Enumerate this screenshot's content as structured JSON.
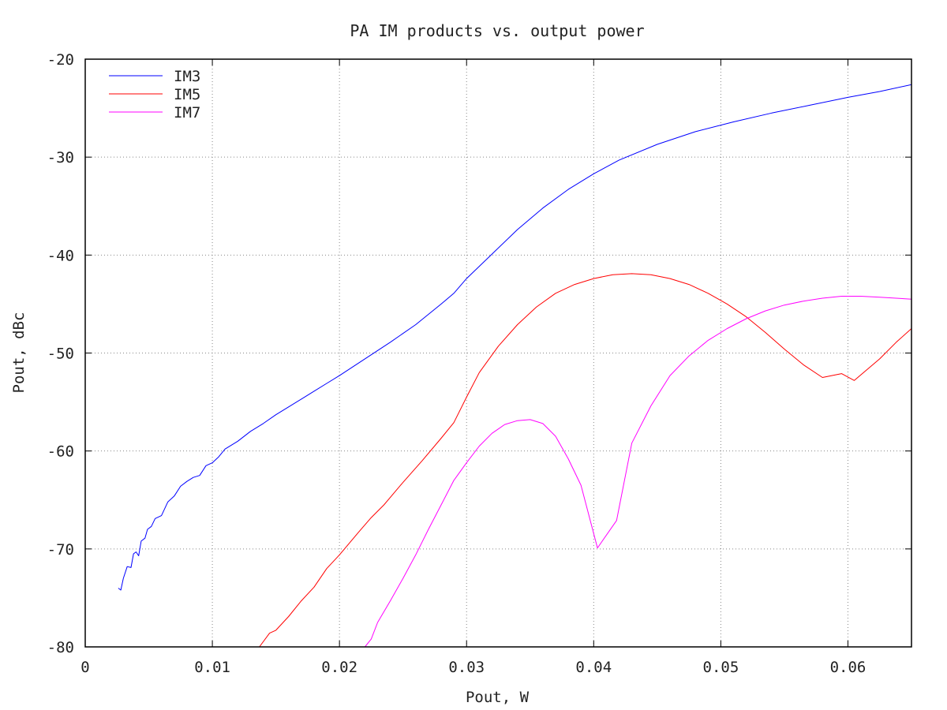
{
  "chart_data": {
    "type": "line",
    "title": "PA IM products vs. output power",
    "xlabel": "Pout, W",
    "ylabel": "Pout, dBc",
    "xlim": [
      0,
      0.065
    ],
    "ylim": [
      -80,
      -20
    ],
    "x_ticks": [
      0,
      0.01,
      0.02,
      0.03,
      0.04,
      0.05,
      0.06
    ],
    "x_tick_labels": [
      "0",
      "0.01",
      "0.02",
      "0.03",
      "0.04",
      "0.05",
      "0.06"
    ],
    "y_ticks": [
      -80,
      -70,
      -60,
      -50,
      -40,
      -30,
      -20
    ],
    "y_tick_labels": [
      "-80",
      "-70",
      "-60",
      "-50",
      "-40",
      "-30",
      "-20"
    ],
    "grid": true,
    "legend_position": "top-left",
    "series": [
      {
        "name": "IM3",
        "color": "#0000ff",
        "points": [
          [
            0.0026,
            -74.0
          ],
          [
            0.0028,
            -74.2
          ],
          [
            0.003,
            -73.0
          ],
          [
            0.0033,
            -71.8
          ],
          [
            0.0036,
            -71.9
          ],
          [
            0.0038,
            -70.5
          ],
          [
            0.004,
            -70.3
          ],
          [
            0.0042,
            -70.7
          ],
          [
            0.0044,
            -69.2
          ],
          [
            0.0047,
            -68.9
          ],
          [
            0.0049,
            -68.0
          ],
          [
            0.0052,
            -67.7
          ],
          [
            0.0055,
            -66.9
          ],
          [
            0.006,
            -66.6
          ],
          [
            0.0065,
            -65.2
          ],
          [
            0.007,
            -64.6
          ],
          [
            0.0075,
            -63.6
          ],
          [
            0.008,
            -63.1
          ],
          [
            0.0085,
            -62.7
          ],
          [
            0.009,
            -62.5
          ],
          [
            0.0095,
            -61.5
          ],
          [
            0.01,
            -61.2
          ],
          [
            0.0105,
            -60.6
          ],
          [
            0.011,
            -59.8
          ],
          [
            0.012,
            -59.0
          ],
          [
            0.013,
            -58.0
          ],
          [
            0.014,
            -57.2
          ],
          [
            0.015,
            -56.3
          ],
          [
            0.016,
            -55.5
          ],
          [
            0.017,
            -54.7
          ],
          [
            0.018,
            -53.9
          ],
          [
            0.019,
            -53.1
          ],
          [
            0.02,
            -52.3
          ],
          [
            0.022,
            -50.6
          ],
          [
            0.024,
            -48.9
          ],
          [
            0.026,
            -47.1
          ],
          [
            0.028,
            -45.0
          ],
          [
            0.029,
            -43.9
          ],
          [
            0.03,
            -42.4
          ],
          [
            0.032,
            -39.9
          ],
          [
            0.034,
            -37.4
          ],
          [
            0.036,
            -35.2
          ],
          [
            0.038,
            -33.3
          ],
          [
            0.04,
            -31.7
          ],
          [
            0.042,
            -30.3
          ],
          [
            0.045,
            -28.7
          ],
          [
            0.048,
            -27.4
          ],
          [
            0.051,
            -26.4
          ],
          [
            0.054,
            -25.5
          ],
          [
            0.057,
            -24.7
          ],
          [
            0.06,
            -23.9
          ],
          [
            0.0625,
            -23.3
          ],
          [
            0.065,
            -22.6
          ]
        ]
      },
      {
        "name": "IM5",
        "color": "#ff0000",
        "points": [
          [
            0.0137,
            -80.0
          ],
          [
            0.0145,
            -78.6
          ],
          [
            0.015,
            -78.3
          ],
          [
            0.016,
            -76.9
          ],
          [
            0.017,
            -75.3
          ],
          [
            0.018,
            -73.9
          ],
          [
            0.019,
            -72.0
          ],
          [
            0.02,
            -70.6
          ],
          [
            0.0215,
            -68.3
          ],
          [
            0.0225,
            -66.8
          ],
          [
            0.0235,
            -65.5
          ],
          [
            0.025,
            -63.2
          ],
          [
            0.0265,
            -61.0
          ],
          [
            0.028,
            -58.7
          ],
          [
            0.029,
            -57.1
          ],
          [
            0.03,
            -54.5
          ],
          [
            0.031,
            -52.0
          ],
          [
            0.0325,
            -49.3
          ],
          [
            0.034,
            -47.1
          ],
          [
            0.0355,
            -45.3
          ],
          [
            0.037,
            -43.9
          ],
          [
            0.0385,
            -43.0
          ],
          [
            0.04,
            -42.4
          ],
          [
            0.0415,
            -42.0
          ],
          [
            0.043,
            -41.9
          ],
          [
            0.0445,
            -42.0
          ],
          [
            0.046,
            -42.4
          ],
          [
            0.0475,
            -43.0
          ],
          [
            0.049,
            -43.9
          ],
          [
            0.0505,
            -45.0
          ],
          [
            0.052,
            -46.3
          ],
          [
            0.0535,
            -47.9
          ],
          [
            0.055,
            -49.6
          ],
          [
            0.0565,
            -51.2
          ],
          [
            0.058,
            -52.5
          ],
          [
            0.0595,
            -52.1
          ],
          [
            0.0605,
            -52.8
          ],
          [
            0.0625,
            -50.6
          ],
          [
            0.0638,
            -48.9
          ],
          [
            0.065,
            -47.5
          ]
        ]
      },
      {
        "name": "IM7",
        "color": "#ff00ff",
        "points": [
          [
            0.022,
            -80.0
          ],
          [
            0.0225,
            -79.2
          ],
          [
            0.023,
            -77.5
          ],
          [
            0.024,
            -75.3
          ],
          [
            0.025,
            -73.0
          ],
          [
            0.026,
            -70.6
          ],
          [
            0.027,
            -68.0
          ],
          [
            0.028,
            -65.5
          ],
          [
            0.029,
            -63.0
          ],
          [
            0.03,
            -61.2
          ],
          [
            0.031,
            -59.5
          ],
          [
            0.032,
            -58.2
          ],
          [
            0.033,
            -57.3
          ],
          [
            0.034,
            -56.9
          ],
          [
            0.035,
            -56.8
          ],
          [
            0.036,
            -57.2
          ],
          [
            0.037,
            -58.5
          ],
          [
            0.038,
            -60.8
          ],
          [
            0.039,
            -63.5
          ],
          [
            0.0403,
            -69.9
          ],
          [
            0.0418,
            -67.1
          ],
          [
            0.043,
            -59.2
          ],
          [
            0.0445,
            -55.4
          ],
          [
            0.046,
            -52.3
          ],
          [
            0.0475,
            -50.3
          ],
          [
            0.049,
            -48.7
          ],
          [
            0.0505,
            -47.5
          ],
          [
            0.052,
            -46.5
          ],
          [
            0.0535,
            -45.7
          ],
          [
            0.055,
            -45.1
          ],
          [
            0.0565,
            -44.7
          ],
          [
            0.058,
            -44.4
          ],
          [
            0.0595,
            -44.2
          ],
          [
            0.061,
            -44.2
          ],
          [
            0.0625,
            -44.3
          ],
          [
            0.065,
            -44.5
          ]
        ]
      }
    ]
  }
}
